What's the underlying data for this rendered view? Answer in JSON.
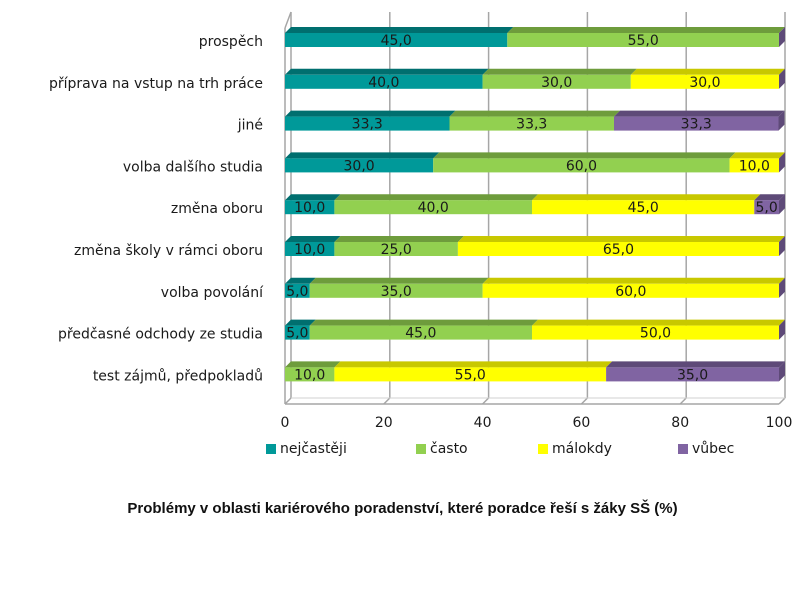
{
  "chart_data": {
    "type": "bar",
    "orientation": "horizontal",
    "stacked": true,
    "three_d": true,
    "title": "Problémy v oblasti kariérového poradenství, které poradce řeší s žáky SŠ (%)",
    "xlabel": "",
    "ylabel": "",
    "xlim": [
      0,
      100
    ],
    "xticks": [
      "0",
      "20",
      "40",
      "60",
      "80",
      "100"
    ],
    "xtick_values": [
      0,
      20,
      40,
      60,
      80,
      100
    ],
    "grid": true,
    "legend_position": "bottom",
    "categories": [
      "prospěch",
      "příprava na vstup na trh práce",
      "jiné",
      "volba dalšího studia",
      "změna oboru",
      "změna školy v rámci oboru",
      "volba povolání",
      "předčasné odchody ze studia",
      "test zájmů, předpokladů"
    ],
    "series": [
      {
        "name": "nejčastěji",
        "color": "#009999",
        "top_color": "#006F6F",
        "values": [
          45.0,
          40.0,
          33.3,
          30.0,
          10.0,
          10.0,
          5.0,
          5.0,
          0
        ]
      },
      {
        "name": "často",
        "color": "#92D050",
        "top_color": "#6E9C3C",
        "values": [
          55.0,
          30.0,
          33.3,
          60.0,
          40.0,
          25.0,
          35.0,
          45.0,
          10.0
        ]
      },
      {
        "name": "málokdy",
        "color": "#FFFF00",
        "top_color": "#C8C800",
        "values": [
          0,
          30.0,
          0,
          10.0,
          45.0,
          65.0,
          60.0,
          50.0,
          55.0
        ]
      },
      {
        "name": "vůbec",
        "color": "#8064A2",
        "top_color": "#5E4A78",
        "values": [
          0,
          0,
          33.3,
          0,
          5.0,
          0,
          0,
          0,
          35.0
        ]
      }
    ],
    "data_labels": [
      [
        "45,0",
        "55,0",
        "",
        ""
      ],
      [
        "40,0",
        "30,0",
        "30,0",
        ""
      ],
      [
        "33,3",
        "33,3",
        "",
        "33,3"
      ],
      [
        "30,0",
        "60,0",
        "10,0",
        ""
      ],
      [
        "10,0",
        "40,0",
        "45,0",
        "5,0"
      ],
      [
        "10,0",
        "25,0",
        "65,0",
        ""
      ],
      [
        "5,0",
        "35,0",
        "60,0",
        ""
      ],
      [
        "5,0",
        "45,0",
        "50,0",
        ""
      ],
      [
        "",
        "10,0",
        "55,0",
        "35,0"
      ]
    ]
  }
}
